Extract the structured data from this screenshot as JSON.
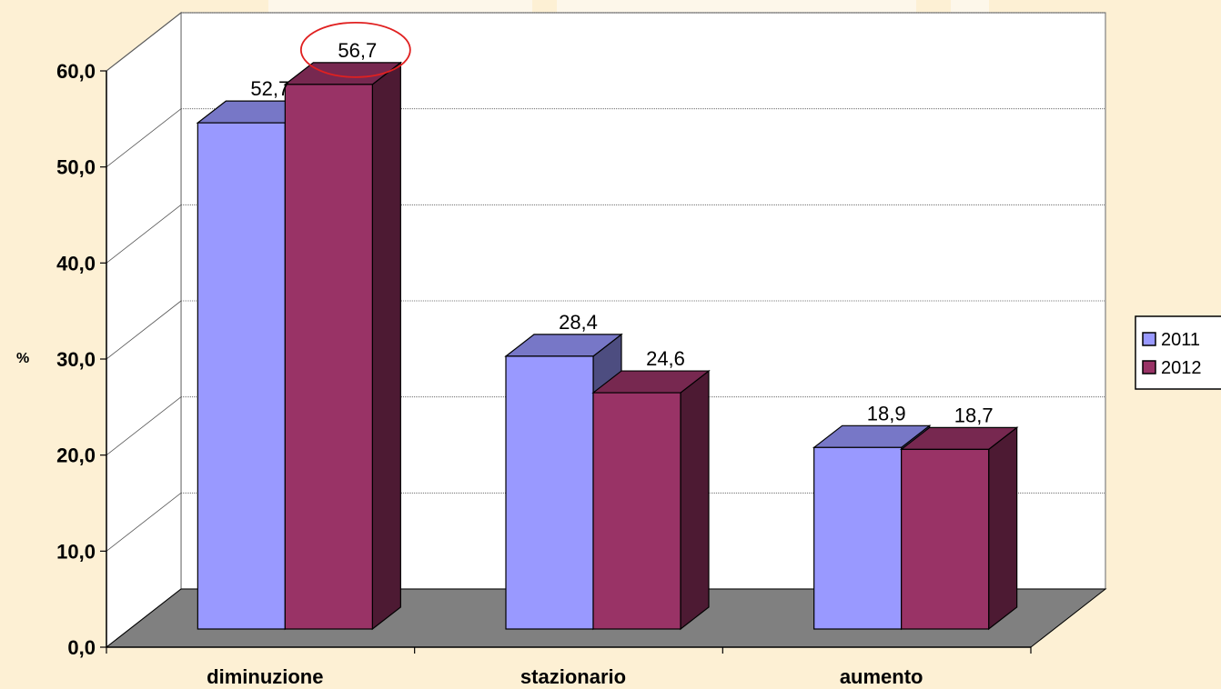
{
  "chart_data": {
    "type": "bar",
    "title": "",
    "xlabel": "",
    "ylabel": "%",
    "ylim": [
      0,
      60
    ],
    "yticks": [
      "0,0",
      "10,0",
      "20,0",
      "30,0",
      "40,0",
      "50,0",
      "60,0"
    ],
    "categories": [
      "diminuzione",
      "stazionario",
      "aumento"
    ],
    "series": [
      {
        "name": "2011",
        "values": [
          52.7,
          28.4,
          18.9
        ],
        "labels": [
          "52,7",
          "28,4",
          "18,9"
        ],
        "color": "#9999ff"
      },
      {
        "name": "2012",
        "values": [
          56.7,
          24.6,
          18.7
        ],
        "labels": [
          "56,7",
          "24,6",
          "18,7"
        ],
        "color": "#993366"
      }
    ],
    "highlight": {
      "series": 1,
      "category": 0,
      "color": "#e02020"
    },
    "grid": true,
    "legend": "right",
    "colors": {
      "floor": "#808080",
      "wall": "#ffffff",
      "background": "#fdf0d4"
    }
  }
}
